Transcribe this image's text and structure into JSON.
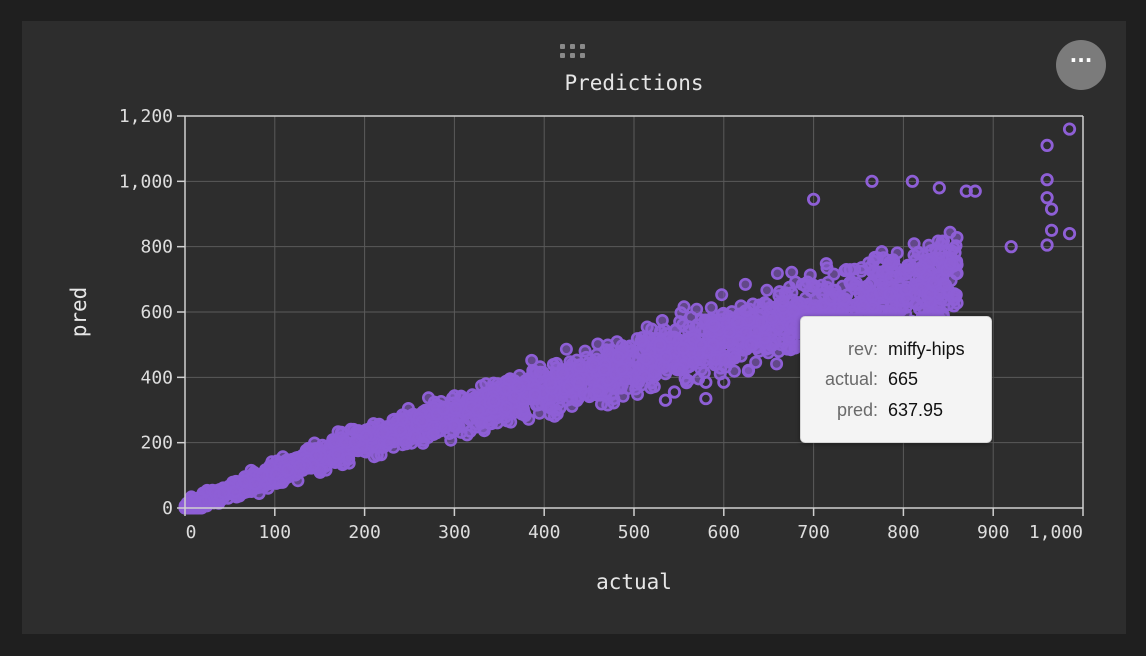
{
  "panel": {
    "drag_handle_icon": "drag-grip-icon",
    "more_button_icon": "more-horizontal-icon",
    "more_button_label": "···"
  },
  "chart_data": {
    "type": "scatter",
    "title": "Predictions",
    "xlabel": "actual",
    "ylabel": "pred",
    "xlim": [
      0,
      1000
    ],
    "ylim": [
      0,
      1200
    ],
    "xticks": [
      "0",
      "100",
      "200",
      "300",
      "400",
      "500",
      "600",
      "700",
      "800",
      "900",
      "1,000"
    ],
    "yticks": [
      "0",
      "200",
      "400",
      "600",
      "800",
      "1,000",
      "1,200"
    ],
    "grid": true,
    "marker": "hollow-circle",
    "color": "#8e5fd6",
    "series": [
      {
        "points_shape": "dense band from (0,0) to about (850,850); predictions roughly track actual with a slope below 1",
        "outliers": [
          [
            985,
            1160
          ],
          [
            960,
            1110
          ],
          [
            810,
            1000
          ],
          [
            765,
            1000
          ],
          [
            960,
            1005
          ],
          [
            840,
            980
          ],
          [
            870,
            970
          ],
          [
            880,
            970
          ],
          [
            960,
            950
          ],
          [
            965,
            915
          ],
          [
            700,
            945
          ],
          [
            965,
            850
          ],
          [
            985,
            840
          ],
          [
            960,
            805
          ],
          [
            920,
            800
          ],
          [
            785,
            655
          ],
          [
            535,
            330
          ],
          [
            545,
            355
          ],
          [
            560,
            390
          ],
          [
            550,
            425
          ],
          [
            580,
            385
          ],
          [
            600,
            385
          ],
          [
            580,
            335
          ],
          [
            505,
            385
          ]
        ]
      }
    ],
    "tooltip": {
      "rows": [
        {
          "key": "rev:",
          "value": "miffy-hips"
        },
        {
          "key": "actual:",
          "value": "665"
        },
        {
          "key": "pred:",
          "value": "637.95"
        }
      ]
    }
  }
}
